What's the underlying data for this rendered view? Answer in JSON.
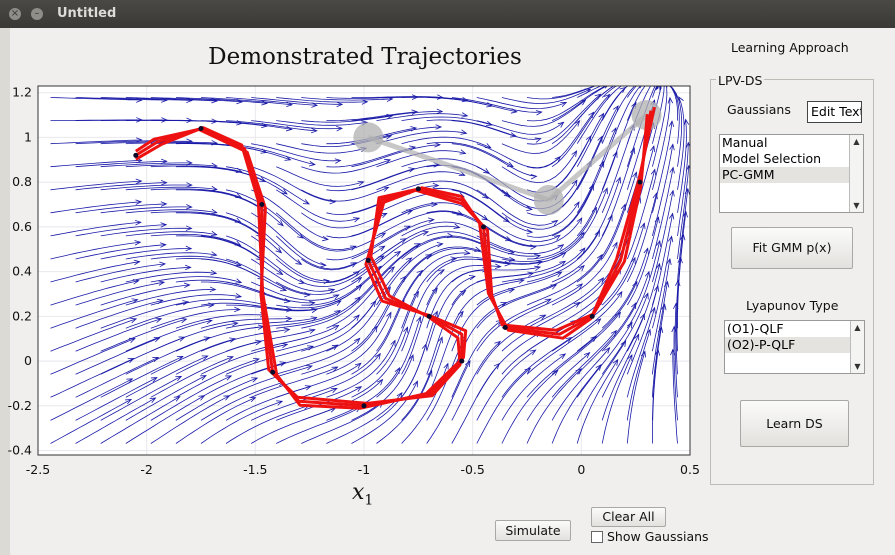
{
  "window": {
    "title": "Untitled"
  },
  "plot": {
    "title": "Demonstrated Trajectories",
    "xlabel_main": "x",
    "xlabel_sub": "1",
    "xticks": [
      "-2.5",
      "-2",
      "-1.5",
      "-1",
      "-0.5",
      "0",
      "0.5"
    ],
    "yticks": [
      "1.2",
      "1",
      "0.8",
      "0.6",
      "0.4",
      "0.2",
      "0",
      "-0.2",
      "-0.4"
    ]
  },
  "panel": {
    "learning_approach": "Learning Approach",
    "group_title": "LPV-DS",
    "gaussians_label": "Gaussians",
    "gaussians_input": "Edit Text",
    "gaussians_options": [
      "Manual",
      "Model Selection",
      "PC-GMM"
    ],
    "gaussians_selected": "PC-GMM",
    "fit_button": "Fit GMM p(x)",
    "lyapunov_label": "Lyapunov Type",
    "lyapunov_options": [
      "(O1)-QLF",
      "(O2)-P-QLF"
    ],
    "lyapunov_selected": "(O2)-P-QLF",
    "learn_button": "Learn DS"
  },
  "bottom": {
    "simulate_button": "Simulate",
    "clear_button": "Clear All",
    "show_gaussians_label": "Show Gaussians",
    "show_gaussians_checked": false
  },
  "colors": {
    "stream": "#1a1aa8",
    "trajectory": "#ee1111",
    "demo_arrow": "#0a0a2a",
    "gaussian": "#b0b0b0"
  }
}
